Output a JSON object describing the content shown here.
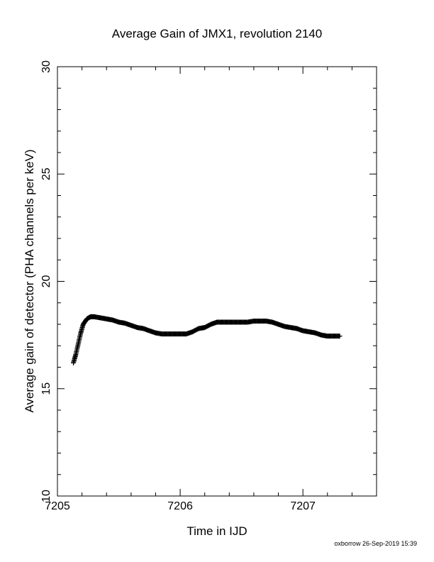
{
  "chart_data": {
    "type": "scatter",
    "title": "Average Gain of JMX1, revolution 2140",
    "xlabel": "Time in IJD",
    "ylabel": "Average gain of detector (PHA channels per keV)",
    "xlim": [
      7205,
      7207.6
    ],
    "ylim": [
      10,
      30
    ],
    "x_ticks": [
      "7205",
      "7206",
      "7207"
    ],
    "y_ticks": [
      "10",
      "15",
      "20",
      "25",
      "30"
    ],
    "x_minor_step": 0.2,
    "y_minor_step": 1,
    "marker": "plus",
    "color": "#000000",
    "grid": false,
    "series": [
      {
        "x": [
          7205.13,
          7205.15,
          7205.17,
          7205.19,
          7205.21,
          7205.24,
          7205.27,
          7205.3,
          7205.35,
          7205.4,
          7205.45,
          7205.5,
          7205.55,
          7205.6,
          7205.65,
          7205.7,
          7205.75,
          7205.8,
          7205.85,
          7205.9,
          7205.95,
          7206.0,
          7206.05,
          7206.1,
          7206.15,
          7206.2,
          7206.25,
          7206.3,
          7206.35,
          7206.4,
          7206.45,
          7206.5,
          7206.55,
          7206.6,
          7206.65,
          7206.7,
          7206.75,
          7206.8,
          7206.85,
          7206.9,
          7206.95,
          7207.0,
          7207.05,
          7207.1,
          7207.15,
          7207.2,
          7207.25,
          7207.3
        ],
        "y": [
          16.2,
          16.6,
          17.1,
          17.6,
          18.0,
          18.25,
          18.35,
          18.35,
          18.3,
          18.25,
          18.2,
          18.1,
          18.05,
          17.95,
          17.85,
          17.8,
          17.7,
          17.6,
          17.55,
          17.55,
          17.55,
          17.55,
          17.55,
          17.65,
          17.8,
          17.85,
          18.0,
          18.1,
          18.1,
          18.1,
          18.1,
          18.1,
          18.1,
          18.15,
          18.15,
          18.15,
          18.1,
          18.0,
          17.9,
          17.85,
          17.8,
          17.7,
          17.65,
          17.6,
          17.5,
          17.45,
          17.45,
          17.45
        ]
      }
    ]
  },
  "footer": {
    "stamp": "oxborrow 26-Sep-2019 15:39"
  }
}
